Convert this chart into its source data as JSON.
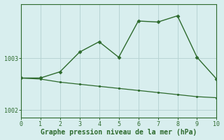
{
  "line1_x": [
    0,
    1,
    2,
    3,
    4,
    5,
    6,
    7,
    8,
    9,
    10
  ],
  "line1_y": [
    1002.62,
    1002.62,
    1002.74,
    1003.12,
    1003.32,
    1003.02,
    1003.72,
    1003.7,
    1003.82,
    1003.02,
    1002.6
  ],
  "line2_x": [
    0,
    1,
    2,
    3,
    4,
    5,
    6,
    7,
    8,
    9,
    10
  ],
  "line2_y": [
    1002.62,
    1002.6,
    1002.54,
    1002.5,
    1002.46,
    1002.42,
    1002.38,
    1002.34,
    1002.3,
    1002.26,
    1002.24
  ],
  "line_color": "#2d6a2d",
  "bg_color": "#d8eeee",
  "grid_color": "#b8d4d4",
  "xlabel": "Graphe pression niveau de la mer (hPa)",
  "xlim": [
    0,
    10
  ],
  "ylim": [
    1001.85,
    1004.05
  ],
  "ytick_positions": [
    1002.0,
    1003.0
  ],
  "ytick_labels": [
    "1002",
    "1003"
  ],
  "xtick_positions": [
    0,
    1,
    2,
    3,
    4,
    5,
    6,
    7,
    8,
    9,
    10
  ],
  "tick_fontsize": 6,
  "xlabel_fontsize": 7,
  "axis_color": "#2d6a2d"
}
